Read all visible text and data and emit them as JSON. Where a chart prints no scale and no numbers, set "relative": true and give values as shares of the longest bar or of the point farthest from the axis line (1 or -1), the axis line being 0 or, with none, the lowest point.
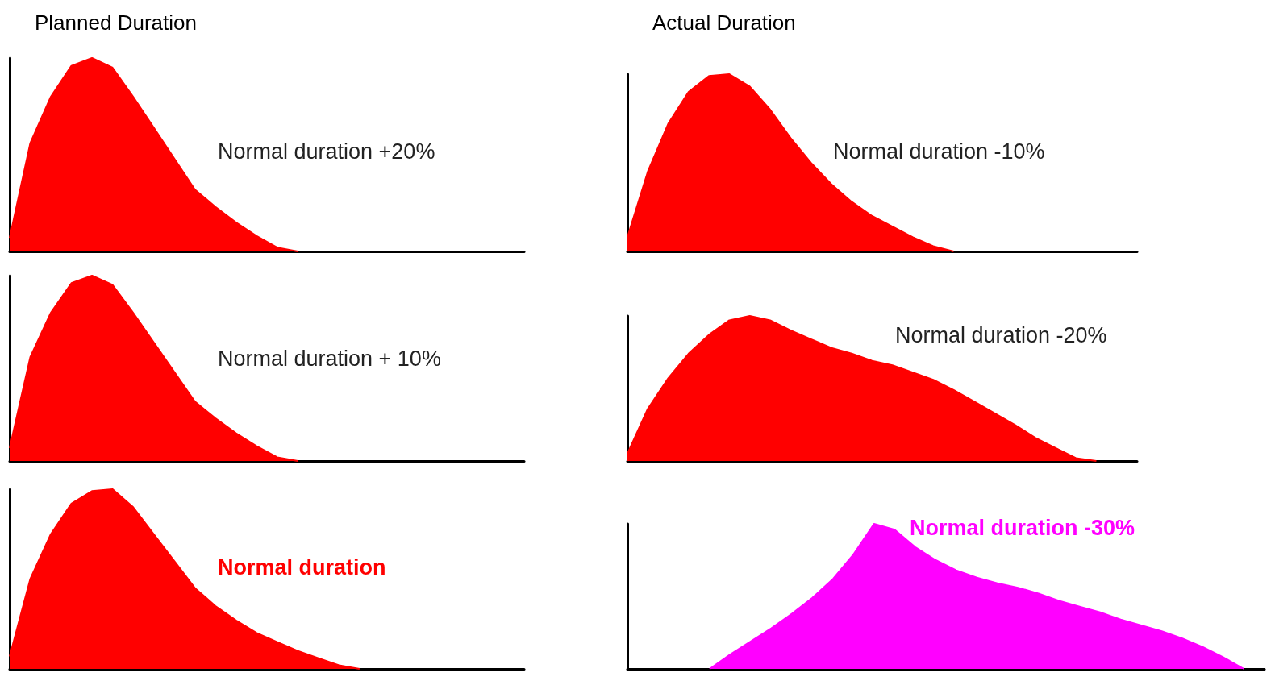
{
  "chart_data": [
    {
      "type": "area",
      "title": "Planned Duration",
      "relative": true,
      "color": "#ff0000",
      "annotations": [
        "Normal duration +20%"
      ],
      "categories": [
        null,
        null,
        null,
        null,
        null,
        null,
        null,
        null,
        null,
        null,
        null,
        null,
        null,
        null,
        null,
        null,
        null,
        null,
        null,
        null,
        null,
        null,
        null,
        null,
        null,
        null
      ],
      "values": [
        0.07,
        0.56,
        0.8,
        0.96,
        1.0,
        0.95,
        0.8,
        0.64,
        0.48,
        0.32,
        0.23,
        0.15,
        0.08,
        0.02,
        0,
        null,
        null,
        null,
        null,
        null,
        null,
        null,
        null,
        null,
        null,
        null
      ]
    },
    {
      "type": "area",
      "relative": true,
      "color": "#ff0000",
      "annotations": [
        "Normal duration + 10%"
      ],
      "categories": [
        null,
        null,
        null,
        null,
        null,
        null,
        null,
        null,
        null,
        null,
        null,
        null,
        null,
        null,
        null,
        null,
        null,
        null,
        null,
        null,
        null,
        null,
        null,
        null,
        null,
        null
      ],
      "values": [
        0.07,
        0.56,
        0.8,
        0.96,
        1.0,
        0.95,
        0.8,
        0.64,
        0.48,
        0.32,
        0.23,
        0.15,
        0.08,
        0.02,
        0,
        null,
        null,
        null,
        null,
        null,
        null,
        null,
        null,
        null,
        null,
        null
      ]
    },
    {
      "type": "area",
      "relative": true,
      "color": "#ff0000",
      "annotations": [
        "Normal duration"
      ],
      "categories": [
        null,
        null,
        null,
        null,
        null,
        null,
        null,
        null,
        null,
        null,
        null,
        null,
        null,
        null,
        null,
        null,
        null,
        null,
        null,
        null,
        null,
        null,
        null,
        null,
        null,
        null
      ],
      "values": [
        0.07,
        0.5,
        0.75,
        0.92,
        0.99,
        1.0,
        0.9,
        0.75,
        0.6,
        0.45,
        0.35,
        0.27,
        0.2,
        0.15,
        0.1,
        0.06,
        0.02,
        0,
        null,
        null,
        null,
        null,
        null,
        null,
        null,
        null
      ]
    },
    {
      "type": "area",
      "title": "Actual Duration",
      "relative": true,
      "color": "#ff0000",
      "annotations": [
        "Normal duration -10%"
      ],
      "categories": [
        null,
        null,
        null,
        null,
        null,
        null,
        null,
        null,
        null,
        null,
        null,
        null,
        null,
        null,
        null,
        null,
        null,
        null,
        null,
        null,
        null,
        null,
        null,
        null,
        null,
        null
      ],
      "values": [
        0.08,
        0.45,
        0.72,
        0.9,
        0.99,
        1.0,
        0.93,
        0.8,
        0.64,
        0.5,
        0.38,
        0.28,
        0.2,
        0.14,
        0.08,
        0.03,
        0,
        null,
        null,
        null,
        null,
        null,
        null,
        null,
        null,
        null
      ]
    },
    {
      "type": "area",
      "relative": true,
      "color": "#ff0000",
      "annotations": [
        "Normal duration -20%"
      ],
      "categories": [
        null,
        null,
        null,
        null,
        null,
        null,
        null,
        null,
        null,
        null,
        null,
        null,
        null,
        null,
        null,
        null,
        null,
        null,
        null,
        null,
        null,
        null,
        null,
        null,
        null,
        null
      ],
      "values": [
        0.05,
        0.36,
        0.57,
        0.74,
        0.87,
        0.97,
        1.0,
        0.97,
        0.9,
        0.84,
        0.78,
        0.74,
        0.69,
        0.66,
        0.61,
        0.56,
        0.49,
        0.41,
        0.33,
        0.25,
        0.16,
        0.09,
        0.02,
        0,
        null,
        null
      ]
    },
    {
      "type": "area",
      "relative": true,
      "color": "#ff00ff",
      "annotations": [
        "Normal duration -30%"
      ],
      "categories": [
        null,
        null,
        null,
        null,
        null,
        null,
        null,
        null,
        null,
        null,
        null,
        null,
        null,
        null,
        null,
        null,
        null,
        null,
        null,
        null,
        null,
        null,
        null,
        null,
        null,
        null,
        null,
        null,
        null,
        null,
        null,
        null
      ],
      "values": [
        null,
        null,
        null,
        null,
        0,
        0.1,
        0.19,
        0.28,
        0.38,
        0.49,
        0.62,
        0.79,
        1.0,
        0.96,
        0.84,
        0.75,
        0.68,
        0.63,
        0.59,
        0.56,
        0.52,
        0.47,
        0.43,
        0.39,
        0.34,
        0.3,
        0.26,
        0.21,
        0.15,
        0.08,
        0,
        null
      ]
    }
  ]
}
